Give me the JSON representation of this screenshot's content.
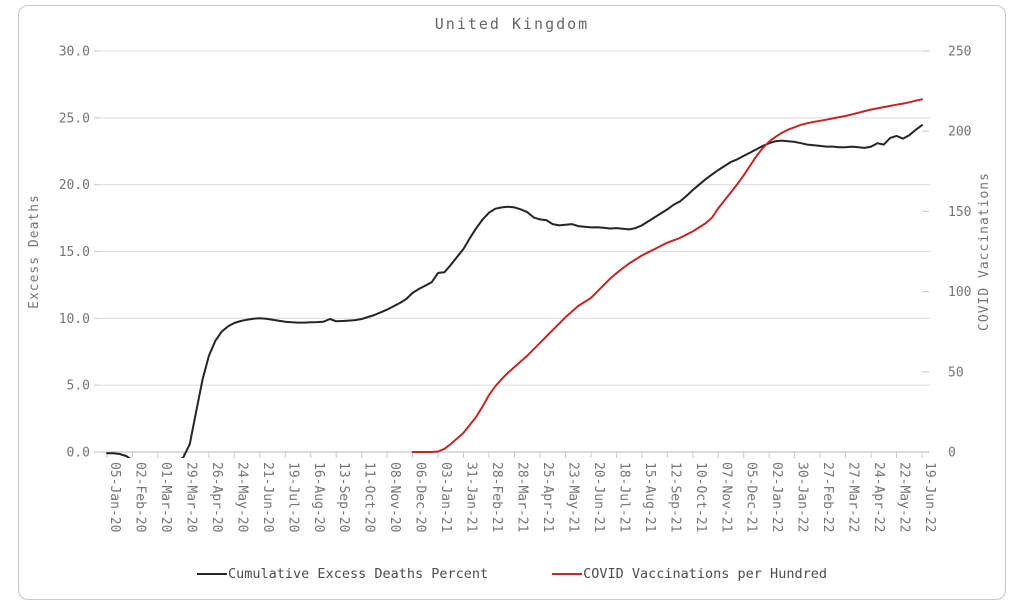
{
  "chart_data": {
    "type": "line",
    "title": "United Kingdom",
    "x_labels": [
      "05-Jan-20",
      "02-Feb-20",
      "01-Mar-20",
      "29-Mar-20",
      "26-Apr-20",
      "24-May-20",
      "21-Jun-20",
      "19-Jul-20",
      "16-Aug-20",
      "13-Sep-20",
      "11-Oct-20",
      "08-Nov-20",
      "06-Dec-20",
      "03-Jan-21",
      "31-Jan-21",
      "28-Feb-21",
      "28-Mar-21",
      "25-Apr-21",
      "23-May-21",
      "20-Jun-21",
      "18-Jul-21",
      "15-Aug-21",
      "12-Sep-21",
      "10-Oct-21",
      "07-Nov-21",
      "05-Dec-21",
      "02-Jan-22",
      "30-Jan-22",
      "27-Feb-22",
      "27-Mar-22",
      "24-Apr-22",
      "22-May-22",
      "19-Jun-22"
    ],
    "x_label_every_weeks": 4,
    "weeks_total": 129,
    "left_axis": {
      "label": "Excess Deaths",
      "tick_labels": [
        "0.0",
        "5.0",
        "10.0",
        "15.0",
        "20.0",
        "25.0",
        "30.0"
      ],
      "min": 0,
      "max": 30
    },
    "right_axis": {
      "label": "COVID Vaccinations",
      "tick_labels": [
        "0",
        "50",
        "100",
        "150",
        "200",
        "250"
      ],
      "min": 0,
      "max": 250
    },
    "grid": "horizontal",
    "legend_position": "bottom-center",
    "series": [
      {
        "name": "Cumulative Excess Deaths Percent",
        "axis": "left",
        "color": "#252525",
        "start_week": 0,
        "values": [
          -0.1,
          -0.1,
          -0.15,
          -0.3,
          -0.6,
          -0.85,
          -1.0,
          -1.0,
          -0.95,
          -0.9,
          -0.85,
          -0.7,
          -0.4,
          0.6,
          3.0,
          5.4,
          7.2,
          8.3,
          9.0,
          9.4,
          9.65,
          9.8,
          9.9,
          9.97,
          10.0,
          9.97,
          9.9,
          9.82,
          9.75,
          9.7,
          9.68,
          9.68,
          9.7,
          9.72,
          9.75,
          9.95,
          9.78,
          9.8,
          9.83,
          9.87,
          9.95,
          10.1,
          10.25,
          10.45,
          10.65,
          10.9,
          11.15,
          11.45,
          11.9,
          12.2,
          12.45,
          12.7,
          13.4,
          13.45,
          14.0,
          14.6,
          15.2,
          16.0,
          16.75,
          17.4,
          17.9,
          18.2,
          18.3,
          18.35,
          18.3,
          18.15,
          17.95,
          17.55,
          17.4,
          17.35,
          17.05,
          16.95,
          17.0,
          17.05,
          16.9,
          16.85,
          16.8,
          16.82,
          16.78,
          16.72,
          16.75,
          16.7,
          16.65,
          16.75,
          16.95,
          17.25,
          17.55,
          17.85,
          18.15,
          18.5,
          18.75,
          19.15,
          19.6,
          20.0,
          20.4,
          20.75,
          21.1,
          21.4,
          21.7,
          21.9,
          22.15,
          22.4,
          22.65,
          22.9,
          23.1,
          23.25,
          23.3,
          23.25,
          23.2,
          23.1,
          23.0,
          22.95,
          22.9,
          22.85,
          22.85,
          22.8,
          22.8,
          22.85,
          22.8,
          22.75,
          22.85,
          23.1,
          23.0,
          23.5,
          23.65,
          23.45,
          23.7,
          24.1,
          24.45
        ]
      },
      {
        "name": "COVID Vaccinations per Hundred",
        "axis": "right",
        "color": "#c42628",
        "start_week": 48,
        "values": [
          0,
          0,
          0,
          0,
          0.3,
          2,
          5,
          8.5,
          12,
          17,
          22,
          28.5,
          35.5,
          41,
          45.5,
          49.5,
          53,
          56.5,
          60,
          64,
          68,
          72,
          76,
          80,
          84,
          87.5,
          91,
          93.5,
          96,
          100,
          104,
          108,
          111.5,
          114.5,
          117.5,
          120,
          122.5,
          124.5,
          126.5,
          128.5,
          130.5,
          132,
          133.5,
          135.5,
          137.5,
          140,
          142.5,
          146,
          152,
          157,
          162,
          167,
          172.5,
          178.5,
          184.5,
          189.5,
          193.5,
          196.5,
          199,
          201,
          202.5,
          204,
          205,
          205.8,
          206.5,
          207.2,
          208,
          208.8,
          209.5,
          210.5,
          211.5,
          212.5,
          213.5,
          214.2,
          215,
          215.8,
          216.5,
          217.2,
          218,
          219,
          219.8
        ]
      }
    ]
  }
}
